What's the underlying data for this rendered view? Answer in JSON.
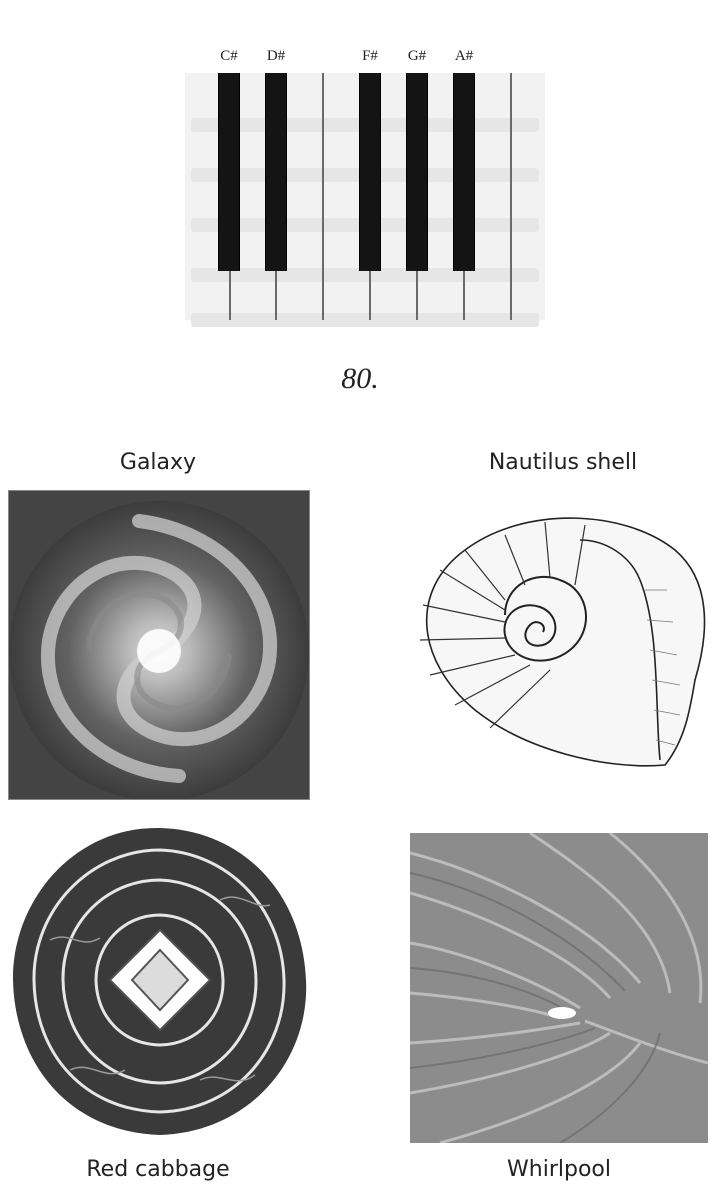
{
  "piano": {
    "black_keys": [
      "C#",
      "D#",
      "F#",
      "G#",
      "A#"
    ]
  },
  "page_number": "80.",
  "images": [
    {
      "caption": "Galaxy",
      "subject": "spiral galaxy photograph"
    },
    {
      "caption": "Nautilus shell",
      "subject": "nautilus shell cross-section drawing"
    },
    {
      "caption": "Red cabbage",
      "subject": "red cabbage cross-section"
    },
    {
      "caption": "Whirlpool",
      "subject": "whirlpool water vortex"
    }
  ]
}
